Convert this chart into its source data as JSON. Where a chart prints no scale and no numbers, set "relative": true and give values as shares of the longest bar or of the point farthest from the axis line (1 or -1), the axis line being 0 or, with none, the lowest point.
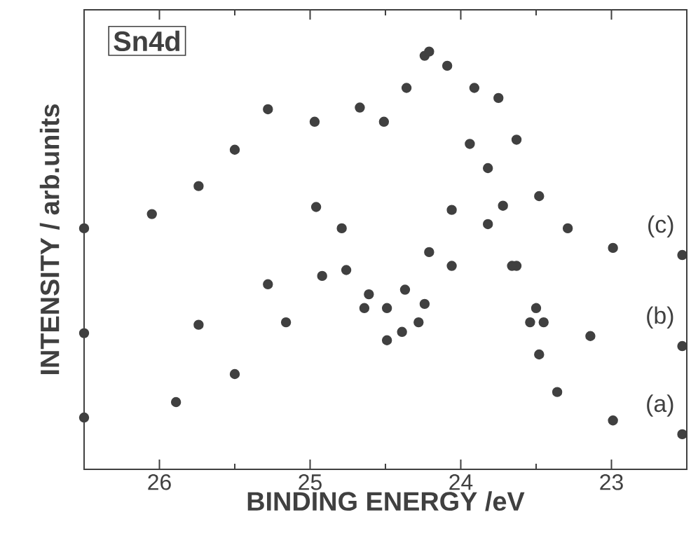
{
  "chart_data": {
    "type": "scatter",
    "xlabel": "BINDING ENERGY /eV",
    "ylabel": "INTENSITY / arb.units",
    "annotations": [
      "Sn4d"
    ],
    "relative": true,
    "xlim": [
      26.5,
      22.5
    ],
    "xticks": [
      26,
      25,
      24,
      23
    ],
    "series": [
      {
        "name": "(a)",
        "color": "#404040",
        "x": [
          26.5,
          25.89,
          25.5,
          25.16,
          24.92,
          24.76,
          24.64,
          24.49,
          24.39,
          24.28,
          24.24,
          24.06,
          23.82,
          23.63,
          23.54,
          23.48,
          23.36,
          22.99,
          22.53
        ],
        "values": [
          0.124,
          0.161,
          0.228,
          0.352,
          0.463,
          0.477,
          0.386,
          0.309,
          0.329,
          0.352,
          0.396,
          0.487,
          0.587,
          0.487,
          0.352,
          0.275,
          0.185,
          0.117,
          0.084
        ]
      },
      {
        "name": "(b)",
        "color": "#404040",
        "x": [
          26.5,
          25.74,
          25.28,
          24.96,
          24.79,
          24.61,
          24.49,
          24.37,
          24.21,
          24.06,
          23.94,
          23.82,
          23.72,
          23.66,
          23.5,
          23.45,
          23.14,
          22.53
        ],
        "values": [
          0.326,
          0.346,
          0.443,
          0.628,
          0.577,
          0.419,
          0.386,
          0.43,
          0.52,
          0.621,
          0.779,
          0.721,
          0.631,
          0.487,
          0.386,
          0.352,
          0.319,
          0.295
        ]
      },
      {
        "name": "(c)",
        "color": "#404040",
        "x": [
          26.5,
          26.05,
          25.74,
          25.5,
          25.28,
          24.97,
          24.67,
          24.51,
          24.36,
          24.24,
          24.21,
          24.09,
          23.91,
          23.75,
          23.63,
          23.48,
          23.29,
          22.99,
          22.53
        ],
        "values": [
          0.577,
          0.611,
          0.678,
          0.765,
          0.862,
          0.832,
          0.866,
          0.832,
          0.913,
          0.99,
          1.0,
          0.966,
          0.913,
          0.889,
          0.789,
          0.654,
          0.577,
          0.53,
          0.513
        ]
      }
    ]
  }
}
